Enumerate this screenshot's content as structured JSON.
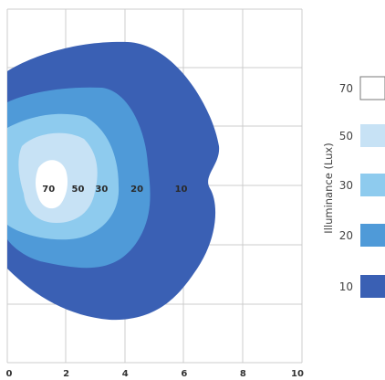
{
  "chart_data": {
    "type": "contour",
    "x_ticks": [
      "0",
      "2",
      "4",
      "6",
      "8",
      "10"
    ],
    "xlim": [
      0,
      10
    ],
    "grid": true,
    "contour_labels": [
      {
        "text": "70",
        "x": 1.4,
        "y": 0
      },
      {
        "text": "50",
        "x": 2.4,
        "y": 0
      },
      {
        "text": "30",
        "x": 3.2,
        "y": 0
      },
      {
        "text": "20",
        "x": 4.4,
        "y": 0
      },
      {
        "text": "10",
        "x": 5.9,
        "y": 0
      }
    ],
    "legend": {
      "title": "Illuminance (Lux)",
      "position": "right",
      "entries": [
        {
          "label": "70",
          "color": "#ffffff"
        },
        {
          "label": "50",
          "color": "#c7e2f5"
        },
        {
          "label": "30",
          "color": "#8ecbee"
        },
        {
          "label": "20",
          "color": "#4f9ad8"
        },
        {
          "label": "10",
          "color": "#3a60b4"
        }
      ]
    }
  }
}
